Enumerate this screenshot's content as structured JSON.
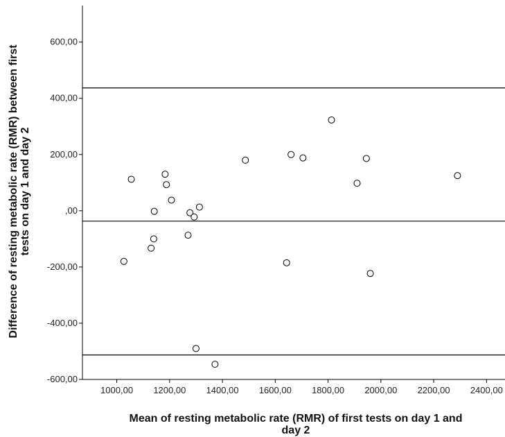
{
  "chart_data": {
    "type": "scatter",
    "title": "",
    "xlabel_lines": [
      "Mean of resting metabolic rate (RMR) of first tests on day 1 and",
      "day 2"
    ],
    "ylabel_lines": [
      "Difference of resting metabolic rate (RMR) between first",
      "tests on day 1 and day 2"
    ],
    "xlim": [
      870,
      2470
    ],
    "ylim": [
      -600,
      730
    ],
    "x_ticks": [
      {
        "value": 1000,
        "label": "1000,00"
      },
      {
        "value": 1200,
        "label": "1200,00"
      },
      {
        "value": 1400,
        "label": "1400,00"
      },
      {
        "value": 1600,
        "label": "1600,00"
      },
      {
        "value": 1800,
        "label": "1800,00"
      },
      {
        "value": 2000,
        "label": "2000,00"
      },
      {
        "value": 2200,
        "label": "2200,00"
      },
      {
        "value": 2400,
        "label": "2400,00"
      }
    ],
    "y_ticks": [
      {
        "value": 600,
        "label": "600,00"
      },
      {
        "value": 400,
        "label": "400,00"
      },
      {
        "value": 200,
        "label": "200,00"
      },
      {
        "value": 0,
        "label": ",00"
      },
      {
        "value": -200,
        "label": "-200,00"
      },
      {
        "value": -400,
        "label": "-400,00"
      },
      {
        "value": -600,
        "label": "-600,00"
      }
    ],
    "reference_lines": [
      437,
      -37,
      -513
    ],
    "points": [
      {
        "x": 1027,
        "y": -180
      },
      {
        "x": 1055,
        "y": 112
      },
      {
        "x": 1130,
        "y": -133
      },
      {
        "x": 1140,
        "y": -100
      },
      {
        "x": 1142,
        "y": -2
      },
      {
        "x": 1183,
        "y": 130
      },
      {
        "x": 1188,
        "y": 93
      },
      {
        "x": 1207,
        "y": 38
      },
      {
        "x": 1270,
        "y": -87
      },
      {
        "x": 1277,
        "y": -7
      },
      {
        "x": 1293,
        "y": -22
      },
      {
        "x": 1300,
        "y": -490
      },
      {
        "x": 1313,
        "y": 13
      },
      {
        "x": 1372,
        "y": -546
      },
      {
        "x": 1487,
        "y": 180
      },
      {
        "x": 1643,
        "y": -185
      },
      {
        "x": 1660,
        "y": 200
      },
      {
        "x": 1705,
        "y": 188
      },
      {
        "x": 1813,
        "y": 323
      },
      {
        "x": 1910,
        "y": 98
      },
      {
        "x": 1945,
        "y": 186
      },
      {
        "x": 1960,
        "y": -223
      },
      {
        "x": 2290,
        "y": 125
      }
    ],
    "grid": false,
    "legend": "none"
  }
}
